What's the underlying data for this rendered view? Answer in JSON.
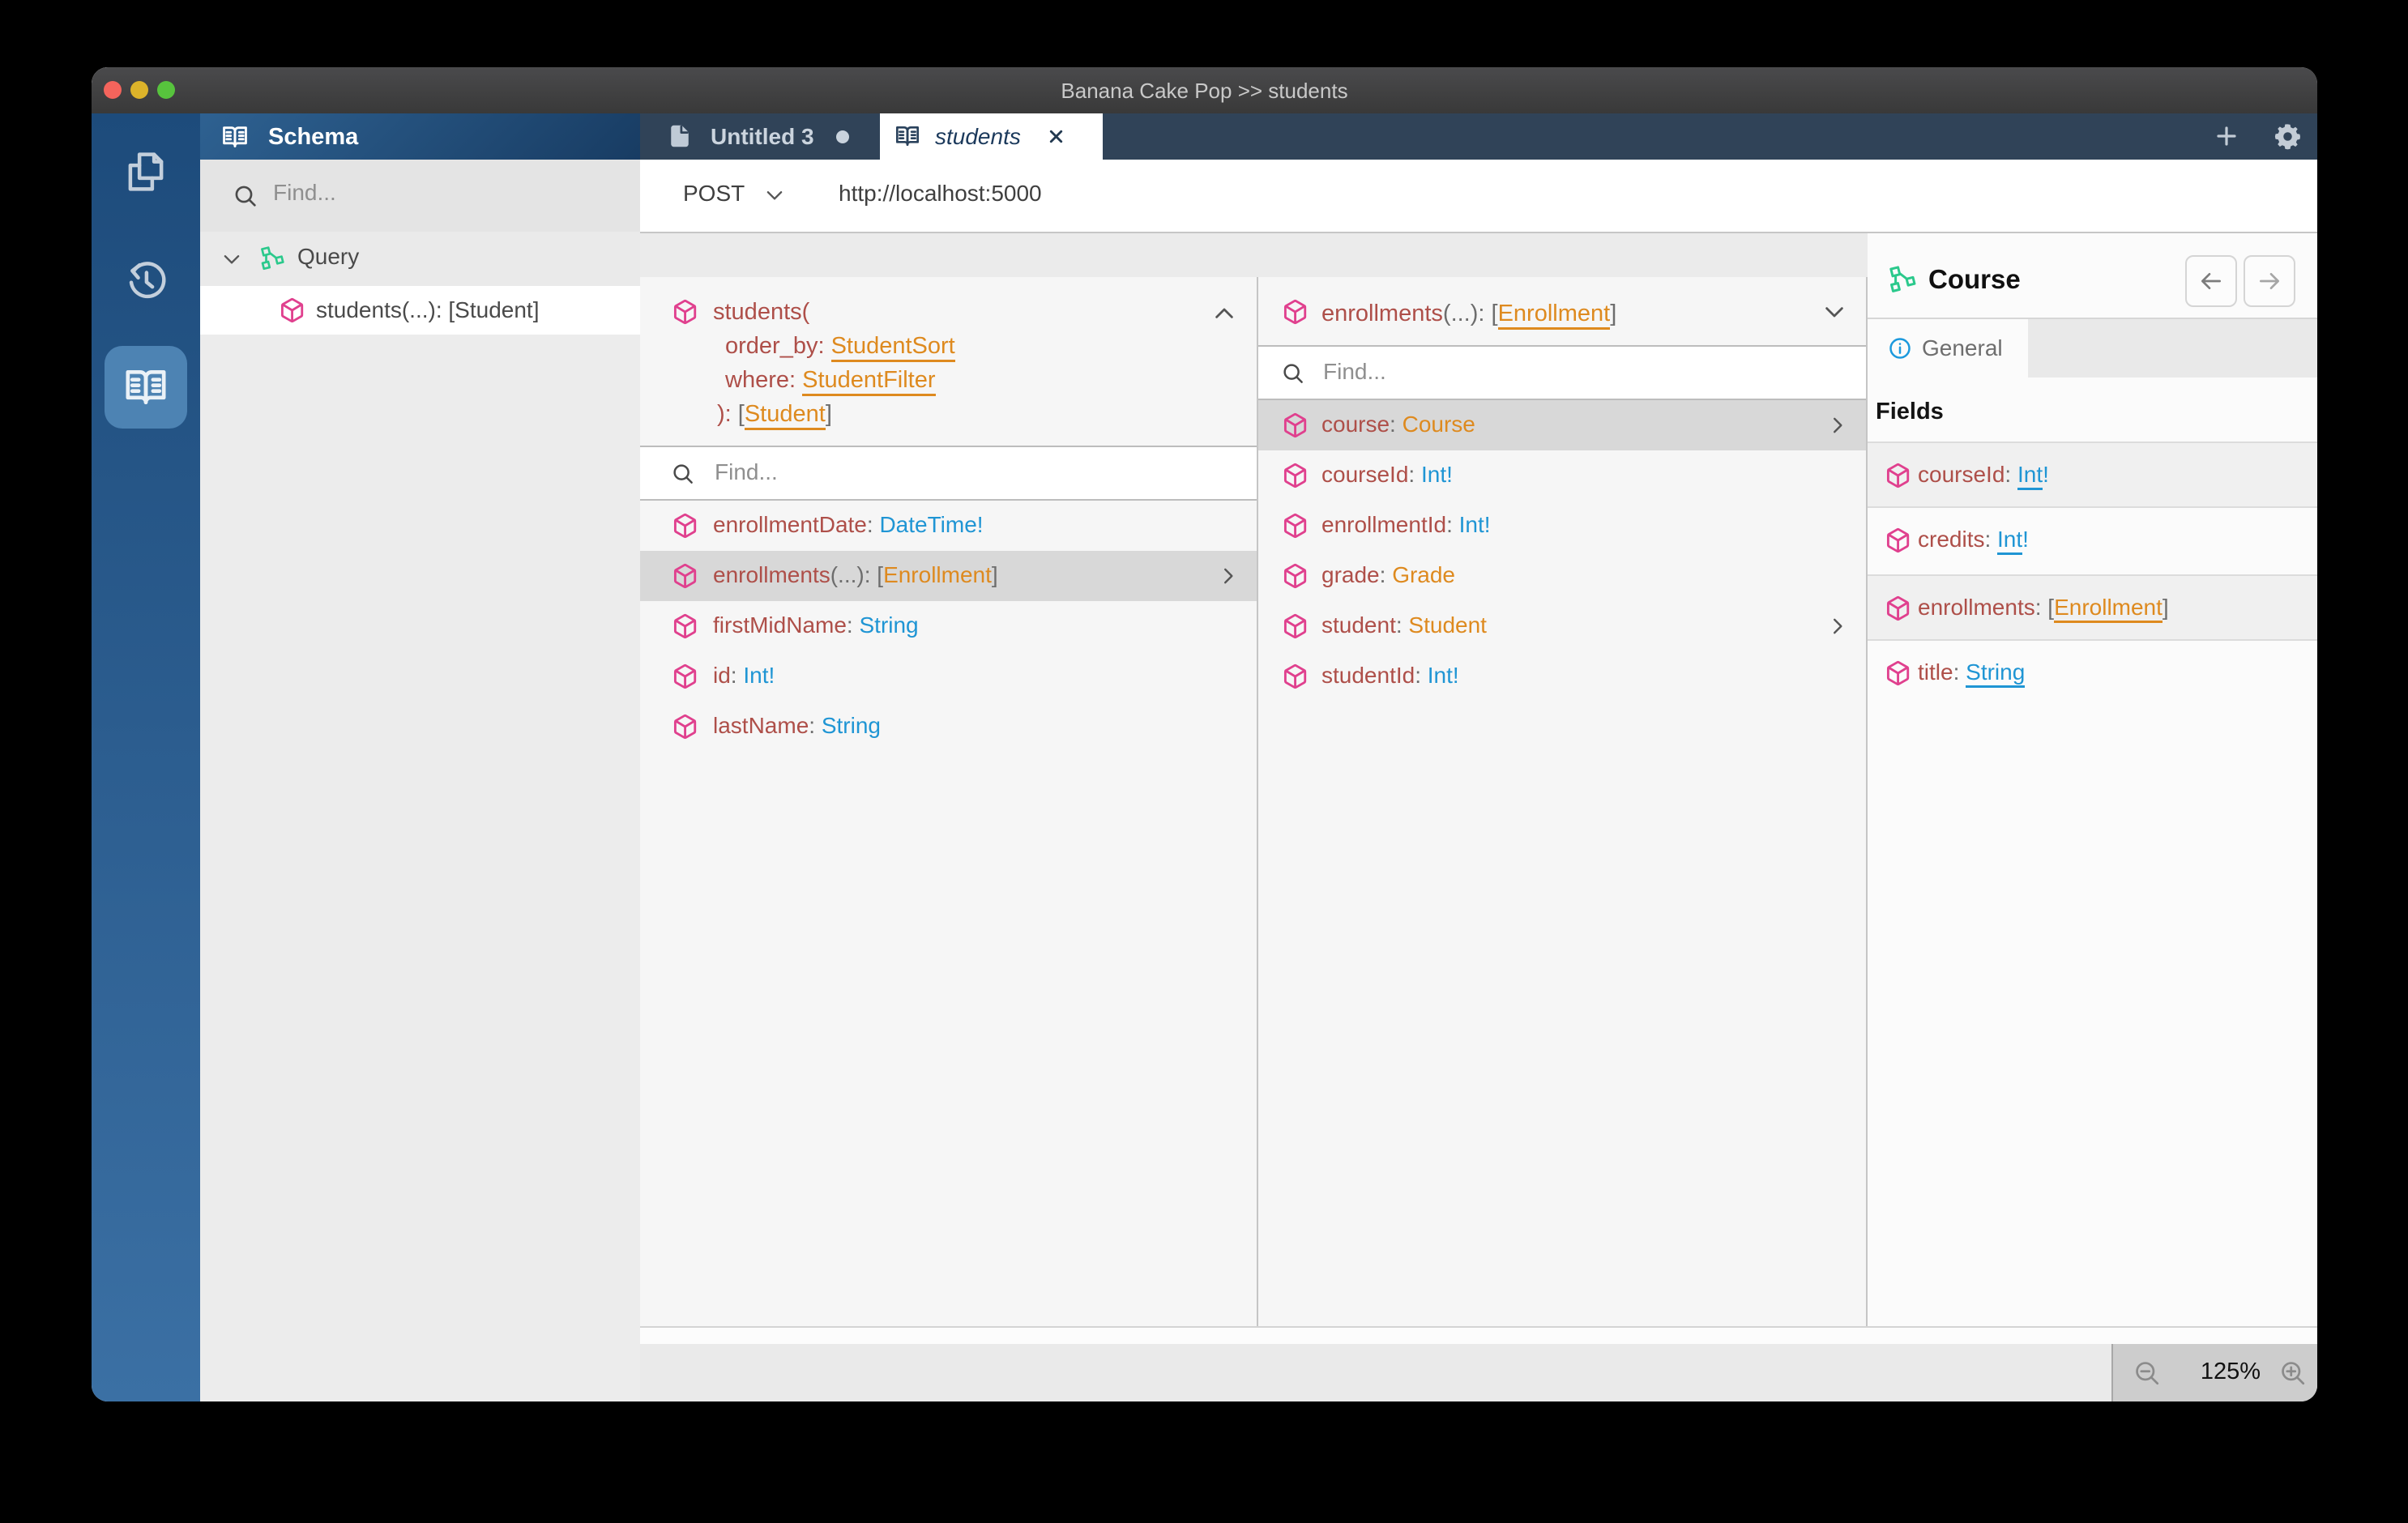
{
  "window_title": "Banana Cake Pop >> students",
  "tab_bar": {
    "untitled_tab": {
      "label": "Untitled 3"
    },
    "students_tab": {
      "label": "students"
    }
  },
  "request_bar": {
    "method": "POST",
    "url": "http://localhost:5000"
  },
  "schema_panel": {
    "title": "Schema",
    "find_placeholder": "Find...",
    "tree": {
      "root_label": "Query",
      "child_segments": [
        {
          "t": "students(...): [Student]",
          "c": "d"
        }
      ]
    }
  },
  "breadcrumb": {
    "items": [
      "students",
      "enrollments",
      "course"
    ]
  },
  "column1": {
    "find_placeholder": "Find...",
    "header_lines": [
      [
        {
          "t": "students(",
          "c": "n"
        }
      ],
      [
        {
          "t": "order_by: ",
          "c": "n"
        },
        {
          "t": "StudentSort",
          "c": "o",
          "u": true
        }
      ],
      [
        {
          "t": "where: ",
          "c": "n"
        },
        {
          "t": "StudentFilter",
          "c": "o",
          "u": true
        }
      ],
      [
        {
          "t": "): ",
          "c": "n"
        },
        {
          "t": "[",
          "c": "p"
        },
        {
          "t": "Student",
          "c": "o",
          "u": true
        },
        {
          "t": "]",
          "c": "p"
        }
      ]
    ],
    "rows": [
      {
        "segments": [
          {
            "t": "enrollmentDate",
            "c": "n"
          },
          {
            "t": ": ",
            "c": "p"
          },
          {
            "t": "DateTime!",
            "c": "s"
          }
        ]
      },
      {
        "segments": [
          {
            "t": "enrollments",
            "c": "n"
          },
          {
            "t": "(...): ",
            "c": "p"
          },
          {
            "t": "[",
            "c": "p"
          },
          {
            "t": "Enrollment",
            "c": "o"
          },
          {
            "t": "]",
            "c": "p"
          }
        ]
      },
      {
        "segments": [
          {
            "t": "firstMidName",
            "c": "n"
          },
          {
            "t": ": ",
            "c": "p"
          },
          {
            "t": "String",
            "c": "s"
          }
        ]
      },
      {
        "segments": [
          {
            "t": "id",
            "c": "n"
          },
          {
            "t": ": ",
            "c": "p"
          },
          {
            "t": "Int!",
            "c": "s"
          }
        ]
      },
      {
        "segments": [
          {
            "t": "lastName",
            "c": "n"
          },
          {
            "t": ": ",
            "c": "p"
          },
          {
            "t": "String",
            "c": "s"
          }
        ]
      }
    ]
  },
  "column2": {
    "find_placeholder": "Find...",
    "header_segments": [
      {
        "t": "enrollments",
        "c": "n"
      },
      {
        "t": "(...): ",
        "c": "p"
      },
      {
        "t": "[",
        "c": "p"
      },
      {
        "t": "Enrollment",
        "c": "o",
        "u": true
      },
      {
        "t": "]",
        "c": "p"
      }
    ],
    "rows": [
      {
        "segments": [
          {
            "t": "course",
            "c": "n"
          },
          {
            "t": ": ",
            "c": "p"
          },
          {
            "t": "Course",
            "c": "o"
          }
        ]
      },
      {
        "segments": [
          {
            "t": "courseId",
            "c": "n"
          },
          {
            "t": ": ",
            "c": "p"
          },
          {
            "t": "Int!",
            "c": "s"
          }
        ]
      },
      {
        "segments": [
          {
            "t": "enrollmentId",
            "c": "n"
          },
          {
            "t": ": ",
            "c": "p"
          },
          {
            "t": "Int!",
            "c": "s"
          }
        ]
      },
      {
        "segments": [
          {
            "t": "grade",
            "c": "n"
          },
          {
            "t": ": ",
            "c": "p"
          },
          {
            "t": "Grade",
            "c": "o"
          }
        ]
      },
      {
        "segments": [
          {
            "t": "student",
            "c": "n"
          },
          {
            "t": ": ",
            "c": "p"
          },
          {
            "t": "Student",
            "c": "o"
          }
        ]
      },
      {
        "segments": [
          {
            "t": "studentId",
            "c": "n"
          },
          {
            "t": ": ",
            "c": "p"
          },
          {
            "t": "Int!",
            "c": "s"
          }
        ]
      }
    ]
  },
  "details_panel": {
    "title": "Course",
    "tab_label": "General",
    "section_heading": "Fields",
    "rows": [
      {
        "segments": [
          {
            "t": "courseId",
            "c": "n"
          },
          {
            "t": ": ",
            "c": "p"
          },
          {
            "t": "Int",
            "c": "s",
            "u": true
          },
          {
            "t": "!",
            "c": "s"
          }
        ]
      },
      {
        "segments": [
          {
            "t": "credits",
            "c": "n"
          },
          {
            "t": ": ",
            "c": "p"
          },
          {
            "t": "Int",
            "c": "s",
            "u": true
          },
          {
            "t": "!",
            "c": "s"
          }
        ]
      },
      {
        "segments": [
          {
            "t": "enrollments",
            "c": "n"
          },
          {
            "t": ": ",
            "c": "p"
          },
          {
            "t": "[",
            "c": "p"
          },
          {
            "t": "Enrollment",
            "c": "o",
            "u": true
          },
          {
            "t": "]",
            "c": "p"
          }
        ]
      },
      {
        "segments": [
          {
            "t": "title",
            "c": "n"
          },
          {
            "t": ": ",
            "c": "p"
          },
          {
            "t": "String",
            "c": "s",
            "u": true
          }
        ]
      }
    ]
  },
  "status_bar": {
    "zoom_level": "125%"
  },
  "colors": {
    "field_name": "#ae4f49",
    "scalar_type": "#1f95d4",
    "object_type": "#de8a1f",
    "cube_icon": "#e0408e",
    "type_icon": "#2bc98c",
    "sidebar_blue": "#1d4b7b",
    "tabbar_navy": "#304358",
    "traffic_red": "#f4645c",
    "traffic_yellow": "#dcb32a",
    "traffic_green": "#57c33d"
  }
}
